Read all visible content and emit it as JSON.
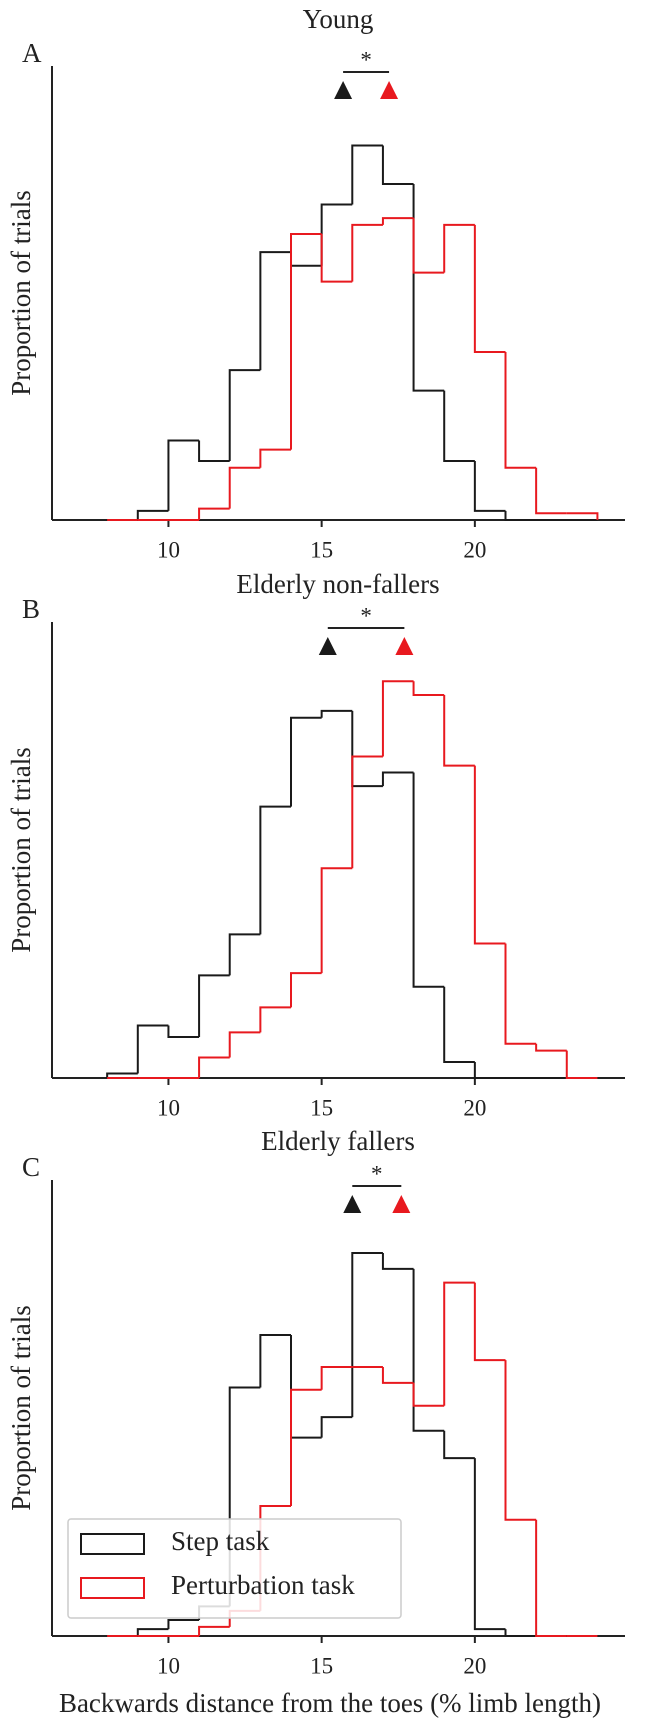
{
  "chart_data": [
    {
      "type": "histogram",
      "title": "Young",
      "panel_label": "A",
      "ylabel": "Proportion of trials",
      "bins": [
        8,
        9,
        10,
        11,
        12,
        13,
        14,
        15,
        16,
        17,
        18,
        19,
        20,
        21,
        22,
        23,
        24
      ],
      "series": [
        {
          "color": "#1a1a1a",
          "values": [
            0,
            0.004,
            0.035,
            0.026,
            0.066,
            0.118,
            0.112,
            0.139,
            0.165,
            0.148,
            0.057,
            0.026,
            0.004,
            0,
            0,
            0
          ],
          "mean": 15.7
        },
        {
          "color": "#e8191f",
          "values": [
            0,
            0,
            0,
            0.005,
            0.023,
            0.031,
            0.126,
            0.105,
            0.13,
            0.133,
            0.109,
            0.13,
            0.074,
            0.023,
            0.003,
            0.003
          ],
          "mean": 17.2
        }
      ],
      "significance": "*",
      "xlim": [
        6.2,
        24.9
      ],
      "ylim": [
        0,
        0.2
      ],
      "xticks": [
        10,
        15,
        20
      ]
    },
    {
      "type": "histogram",
      "title": "Elderly non-fallers",
      "panel_label": "B",
      "ylabel": "Proportion of trials",
      "bins": [
        8,
        9,
        10,
        11,
        12,
        13,
        14,
        15,
        16,
        17,
        18,
        19,
        20,
        21,
        22,
        23,
        24
      ],
      "series": [
        {
          "color": "#1a1a1a",
          "values": [
            0.002,
            0.023,
            0.018,
            0.045,
            0.063,
            0.119,
            0.158,
            0.161,
            0.128,
            0.134,
            0.04,
            0.007,
            0,
            0,
            0,
            0
          ],
          "mean": 15.2
        },
        {
          "color": "#e8191f",
          "values": [
            0,
            0,
            0,
            0.009,
            0.02,
            0.031,
            0.046,
            0.092,
            0.141,
            0.174,
            0.168,
            0.137,
            0.059,
            0.015,
            0.012,
            0
          ],
          "mean": 17.7
        }
      ],
      "significance": "*",
      "xlim": [
        6.2,
        24.9
      ],
      "ylim": [
        0,
        0.2
      ],
      "xticks": [
        10,
        15,
        20
      ]
    },
    {
      "type": "histogram",
      "title": "Elderly fallers",
      "panel_label": "C",
      "ylabel": "Proportion of trials",
      "xlabel": "Backwards distance from the toes (% limb length)",
      "bins": [
        8,
        9,
        10,
        11,
        12,
        13,
        14,
        15,
        16,
        17,
        18,
        19,
        20,
        21,
        22,
        23,
        24
      ],
      "series": [
        {
          "name": "Step task",
          "color": "#1a1a1a",
          "values": [
            0,
            0.003,
            0.007,
            0.013,
            0.109,
            0.132,
            0.087,
            0.096,
            0.168,
            0.161,
            0.09,
            0.078,
            0.003,
            0,
            0,
            0
          ],
          "mean": 16.0
        },
        {
          "name": "Perturbation task",
          "color": "#e8191f",
          "values": [
            0,
            0,
            0,
            0.004,
            0.011,
            0.057,
            0.108,
            0.118,
            0.118,
            0.111,
            0.101,
            0.155,
            0.121,
            0.051,
            0,
            0
          ],
          "mean": 17.6
        }
      ],
      "significance": "*",
      "xlim": [
        6.2,
        24.9
      ],
      "ylim": [
        0,
        0.2
      ],
      "xticks": [
        10,
        15,
        20
      ],
      "legend": "lower left"
    }
  ]
}
